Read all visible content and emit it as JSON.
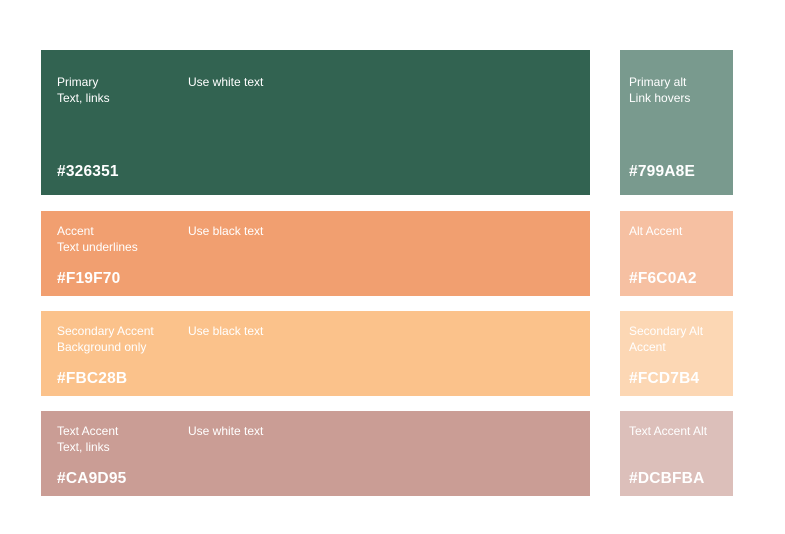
{
  "swatches": {
    "primary": {
      "name": "Primary",
      "usage": "Text, links",
      "note": "Use white text",
      "hex": "#326351"
    },
    "primary_alt": {
      "name": "Primary alt",
      "usage": "Link hovers",
      "hex": "#799A8E"
    },
    "accent": {
      "name": "Accent",
      "usage": "Text underlines",
      "note": "Use black text",
      "hex": "#F19F70"
    },
    "accent_alt": {
      "name": "Alt Accent",
      "hex": "#F6C0A2"
    },
    "secondary": {
      "name": "Secondary Accent",
      "usage": "Background only",
      "note": "Use black text",
      "hex": "#FBC28B"
    },
    "secondary_alt": {
      "name": "Secondary Alt",
      "usage": "Accent",
      "hex": "#FCD7B4"
    },
    "text_accent": {
      "name": "Text Accent",
      "usage": "Text, links",
      "note": "Use white text",
      "hex": "#CA9D95"
    },
    "text_accent_alt": {
      "name": "Text Accent Alt",
      "hex": "#DCBFBA"
    }
  }
}
